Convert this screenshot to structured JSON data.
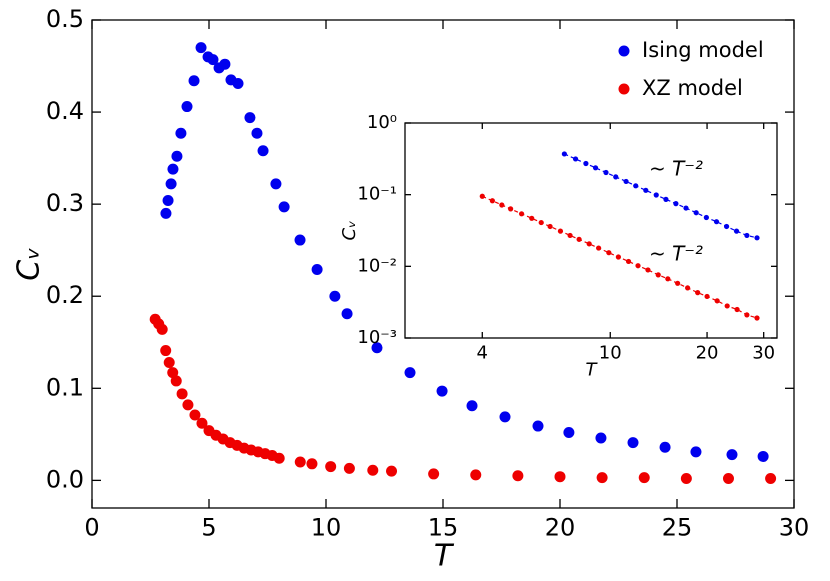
{
  "chart_data": [
    {
      "type": "scatter",
      "xlabel": "T",
      "ylabel": "Cᵥ",
      "xlim": [
        0,
        30
      ],
      "ylim": [
        -0.03,
        0.5
      ],
      "xticks": [
        0,
        5,
        10,
        15,
        20,
        25,
        30
      ],
      "yticks": [
        {
          "value": 0,
          "label": "0.0"
        },
        0.1,
        0.2,
        0.3,
        0.4,
        0.5
      ],
      "legend": "upper right",
      "series": [
        {
          "name": "Ising model",
          "color": "#0000ee",
          "x": [
            3.16,
            3.25,
            3.38,
            3.46,
            3.63,
            3.8,
            4.06,
            4.36,
            4.66,
            4.96,
            5.17,
            5.43,
            5.68,
            5.94,
            6.24,
            6.75,
            7.05,
            7.31,
            7.86,
            8.21,
            8.89,
            9.62,
            10.38,
            10.9,
            12.18,
            13.59,
            14.96,
            16.24,
            17.65,
            19.06,
            20.38,
            21.75,
            23.12,
            24.49,
            25.81,
            27.35,
            28.68
          ],
          "values": [
            0.29,
            0.304,
            0.322,
            0.338,
            0.352,
            0.377,
            0.406,
            0.434,
            0.47,
            0.46,
            0.457,
            0.448,
            0.452,
            0.435,
            0.431,
            0.394,
            0.377,
            0.358,
            0.322,
            0.297,
            0.261,
            0.229,
            0.2,
            0.181,
            0.144,
            0.117,
            0.097,
            0.081,
            0.069,
            0.059,
            0.052,
            0.046,
            0.041,
            0.036,
            0.031,
            0.028,
            0.026
          ]
        },
        {
          "name": "XZ model",
          "color": "#ee0000",
          "x": [
            2.7,
            2.85,
            3.0,
            3.15,
            3.3,
            3.45,
            3.6,
            3.85,
            4.1,
            4.4,
            4.7,
            5.0,
            5.3,
            5.6,
            5.9,
            6.2,
            6.5,
            6.8,
            7.1,
            7.4,
            7.7,
            8.0,
            8.9,
            9.4,
            10.2,
            11.0,
            12.0,
            12.8,
            14.6,
            16.4,
            18.2,
            20.0,
            21.8,
            23.6,
            25.4,
            27.2,
            29.0
          ],
          "values": [
            0.175,
            0.17,
            0.164,
            0.141,
            0.128,
            0.117,
            0.108,
            0.094,
            0.082,
            0.071,
            0.062,
            0.054,
            0.049,
            0.045,
            0.041,
            0.038,
            0.035,
            0.033,
            0.031,
            0.029,
            0.027,
            0.024,
            0.02,
            0.018,
            0.015,
            0.013,
            0.011,
            0.01,
            0.007,
            0.006,
            0.005,
            0.004,
            0.003,
            0.003,
            0.002,
            0.002,
            0.002
          ]
        }
      ]
    },
    {
      "type": "scatter",
      "xlabel": "T",
      "ylabel": "Cᵥ",
      "xlog": true,
      "ylog": true,
      "xlim": [
        2.3,
        33
      ],
      "ylim": [
        0.001,
        1
      ],
      "xticks": [
        4,
        10,
        20,
        30
      ],
      "yticks": [
        {
          "value": 0.001,
          "label": "10⁻³"
        },
        {
          "value": 0.01,
          "label": "10⁻²"
        },
        {
          "value": 0.1,
          "label": "10⁻¹"
        },
        {
          "value": 1,
          "label": "10⁰"
        }
      ],
      "line": "dashed",
      "annotations": [
        {
          "text": "~ T⁻²",
          "x": 13.2,
          "y": 0.22,
          "color": "#0000ee"
        },
        {
          "text": "~ T⁻²",
          "x": 13.2,
          "y": 0.0144,
          "color": "#ee0000"
        }
      ],
      "series": [
        {
          "color": "#0000ee",
          "x": [
            7.2,
            7.8,
            8.4,
            9.0,
            9.7,
            10.4,
            11.2,
            12.0,
            12.9,
            13.9,
            14.9,
            16.0,
            17.2,
            18.5,
            19.9,
            21.4,
            23.0,
            24.7,
            26.6,
            28.6
          ],
          "values": [
            0.37,
            0.315,
            0.272,
            0.237,
            0.204,
            0.177,
            0.153,
            0.133,
            0.115,
            0.099,
            0.086,
            0.075,
            0.065,
            0.056,
            0.048,
            0.042,
            0.036,
            0.031,
            0.027,
            0.025
          ]
        },
        {
          "color": "#ee0000",
          "x": [
            4,
            4.3,
            4.6,
            4.9,
            5.3,
            5.7,
            6.1,
            6.5,
            7.0,
            7.5,
            8.0,
            8.6,
            9.2,
            9.9,
            10.6,
            11.4,
            12.2,
            13.1,
            14.1,
            15.1,
            16.2,
            17.4,
            18.7,
            20.0,
            21.5,
            23.1,
            24.8,
            26.6,
            28.6
          ],
          "values": [
            0.095,
            0.0822,
            0.0718,
            0.0633,
            0.0541,
            0.0468,
            0.0408,
            0.036,
            0.031,
            0.027,
            0.0238,
            0.0206,
            0.018,
            0.0155,
            0.0135,
            0.0117,
            0.0102,
            0.0089,
            0.0076,
            0.0067,
            0.0058,
            0.005,
            0.0043,
            0.0038,
            0.0033,
            0.0028,
            0.0025,
            0.0021,
            0.0019
          ]
        }
      ]
    }
  ]
}
